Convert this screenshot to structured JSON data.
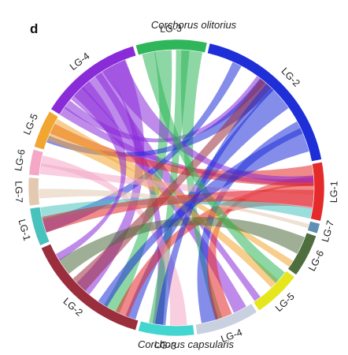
{
  "figure": {
    "panel_label": "d",
    "top_genome": "Corchorus olitorius",
    "bottom_genome": "Corchorus capsularis"
  },
  "segments": [
    {
      "key": "o3",
      "label": "LG-3",
      "genome": "Corchorus olitorius",
      "color": "#2fb65a"
    },
    {
      "key": "o2",
      "label": "LG-2",
      "genome": "Corchorus olitorius",
      "color": "#1f2fd8"
    },
    {
      "key": "o1",
      "label": "LG-1",
      "genome": "Corchorus olitorius",
      "color": "#e42a2a"
    },
    {
      "key": "o7",
      "label": "LG-7",
      "genome": "Corchorus olitorius",
      "color": "#5f8fb3"
    },
    {
      "key": "o6",
      "label": "LG-6",
      "genome": "Corchorus olitorius",
      "color": "#4e6e3e"
    },
    {
      "key": "c5",
      "label": "LG-5",
      "genome": "Corchorus capsularis",
      "color": "#e6e61c"
    },
    {
      "key": "c4",
      "label": "LG-4",
      "genome": "Corchorus capsularis",
      "color": "#c9d0e0"
    },
    {
      "key": "c3",
      "label": "LG-3",
      "genome": "Corchorus capsularis",
      "color": "#43d6d0"
    },
    {
      "key": "c2",
      "label": "LG-2",
      "genome": "Corchorus capsularis",
      "color": "#9a2e3c"
    },
    {
      "key": "c1",
      "label": "LG-1",
      "genome": "Corchorus capsularis",
      "color": "#48c2bd"
    },
    {
      "key": "c7",
      "label": "LG-7",
      "genome": "Corchorus capsularis",
      "color": "#e2c9b0"
    },
    {
      "key": "c6",
      "label": "LG-6",
      "genome": "Corchorus capsularis",
      "color": "#f4a8c6"
    },
    {
      "key": "c5b",
      "label": "LG-5",
      "genome": "Corchorus capsularis",
      "color": "#f0a630"
    },
    {
      "key": "o4",
      "label": "LG-4",
      "genome": "Corchorus olitorius",
      "color": "#8a2bd8"
    }
  ],
  "links": [
    {
      "from": "o4",
      "to": "o1",
      "color": "#8a2bd8"
    },
    {
      "from": "o4",
      "to": "c3",
      "color": "#8a2bd8"
    },
    {
      "from": "o4",
      "to": "c4",
      "color": "#8a2bd8"
    },
    {
      "from": "o4",
      "to": "c2",
      "color": "#8a2bd8"
    },
    {
      "from": "o4",
      "to": "c5",
      "color": "#8a2bd8"
    },
    {
      "from": "o4",
      "to": "o2",
      "color": "#8a2bd8"
    },
    {
      "from": "o3",
      "to": "c3",
      "color": "#2fb65a"
    },
    {
      "from": "o3",
      "to": "c2",
      "color": "#2fb65a"
    },
    {
      "from": "o3",
      "to": "c4",
      "color": "#2fb65a"
    },
    {
      "from": "o2",
      "to": "c2",
      "color": "#1f2fd8"
    },
    {
      "from": "o2",
      "to": "c1",
      "color": "#1f2fd8"
    },
    {
      "from": "o2",
      "to": "c4",
      "color": "#1f2fd8"
    },
    {
      "from": "o2",
      "to": "c5b",
      "color": "#1f2fd8"
    },
    {
      "from": "o1",
      "to": "c5b",
      "color": "#e42a2a"
    },
    {
      "from": "o1",
      "to": "c2",
      "color": "#e42a2a"
    },
    {
      "from": "o1",
      "to": "c4",
      "color": "#e42a2a"
    },
    {
      "from": "c5b",
      "to": "o6",
      "color": "#f0a630"
    },
    {
      "from": "c5b",
      "to": "c5",
      "color": "#f0a630"
    },
    {
      "from": "c6",
      "to": "o1",
      "color": "#f4a8c6"
    },
    {
      "from": "c6",
      "to": "c3",
      "color": "#f4a8c6"
    },
    {
      "from": "c7",
      "to": "o7",
      "color": "#e2c9b0"
    },
    {
      "from": "c1",
      "to": "o1",
      "color": "#48c2bd"
    },
    {
      "from": "c2",
      "to": "o2",
      "color": "#9a2e3c"
    },
    {
      "from": "o6",
      "to": "c2",
      "color": "#4e6e3e"
    },
    {
      "from": "o4",
      "to": "o1",
      "color": "#8a2bd8"
    },
    {
      "from": "o2",
      "to": "c3",
      "color": "#1f2fd8"
    },
    {
      "from": "o3",
      "to": "c5",
      "color": "#2fb65a"
    },
    {
      "from": "o1",
      "to": "c1",
      "color": "#e42a2a"
    },
    {
      "from": "o4",
      "to": "c2",
      "color": "#8a2bd8"
    },
    {
      "from": "o2",
      "to": "c2",
      "color": "#1f2fd8"
    }
  ]
}
